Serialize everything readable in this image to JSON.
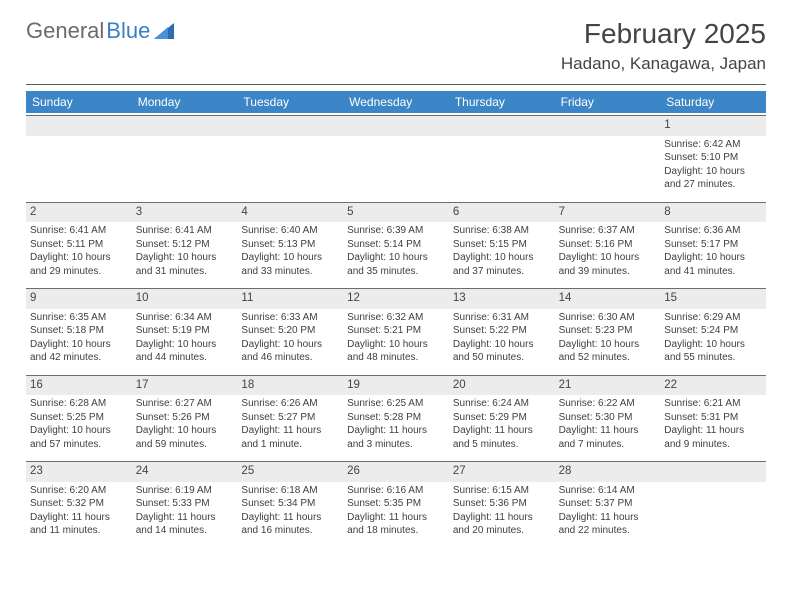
{
  "logo": {
    "text_gray": "General",
    "text_blue": "Blue"
  },
  "header": {
    "month_title": "February 2025",
    "location": "Hadano, Kanagawa, Japan"
  },
  "colors": {
    "header_bg": "#3c85c6",
    "header_text": "#ffffff",
    "daynum_bg": "#ececec",
    "rule": "#6d6d6d",
    "text": "#3f3f3f",
    "logo_gray": "#6b6b6b",
    "logo_blue": "#3b7fc4"
  },
  "day_labels": [
    "Sunday",
    "Monday",
    "Tuesday",
    "Wednesday",
    "Thursday",
    "Friday",
    "Saturday"
  ],
  "weeks": [
    [
      null,
      null,
      null,
      null,
      null,
      null,
      {
        "num": "1",
        "sunrise": "Sunrise: 6:42 AM",
        "sunset": "Sunset: 5:10 PM",
        "daylight1": "Daylight: 10 hours",
        "daylight2": "and 27 minutes."
      }
    ],
    [
      {
        "num": "2",
        "sunrise": "Sunrise: 6:41 AM",
        "sunset": "Sunset: 5:11 PM",
        "daylight1": "Daylight: 10 hours",
        "daylight2": "and 29 minutes."
      },
      {
        "num": "3",
        "sunrise": "Sunrise: 6:41 AM",
        "sunset": "Sunset: 5:12 PM",
        "daylight1": "Daylight: 10 hours",
        "daylight2": "and 31 minutes."
      },
      {
        "num": "4",
        "sunrise": "Sunrise: 6:40 AM",
        "sunset": "Sunset: 5:13 PM",
        "daylight1": "Daylight: 10 hours",
        "daylight2": "and 33 minutes."
      },
      {
        "num": "5",
        "sunrise": "Sunrise: 6:39 AM",
        "sunset": "Sunset: 5:14 PM",
        "daylight1": "Daylight: 10 hours",
        "daylight2": "and 35 minutes."
      },
      {
        "num": "6",
        "sunrise": "Sunrise: 6:38 AM",
        "sunset": "Sunset: 5:15 PM",
        "daylight1": "Daylight: 10 hours",
        "daylight2": "and 37 minutes."
      },
      {
        "num": "7",
        "sunrise": "Sunrise: 6:37 AM",
        "sunset": "Sunset: 5:16 PM",
        "daylight1": "Daylight: 10 hours",
        "daylight2": "and 39 minutes."
      },
      {
        "num": "8",
        "sunrise": "Sunrise: 6:36 AM",
        "sunset": "Sunset: 5:17 PM",
        "daylight1": "Daylight: 10 hours",
        "daylight2": "and 41 minutes."
      }
    ],
    [
      {
        "num": "9",
        "sunrise": "Sunrise: 6:35 AM",
        "sunset": "Sunset: 5:18 PM",
        "daylight1": "Daylight: 10 hours",
        "daylight2": "and 42 minutes."
      },
      {
        "num": "10",
        "sunrise": "Sunrise: 6:34 AM",
        "sunset": "Sunset: 5:19 PM",
        "daylight1": "Daylight: 10 hours",
        "daylight2": "and 44 minutes."
      },
      {
        "num": "11",
        "sunrise": "Sunrise: 6:33 AM",
        "sunset": "Sunset: 5:20 PM",
        "daylight1": "Daylight: 10 hours",
        "daylight2": "and 46 minutes."
      },
      {
        "num": "12",
        "sunrise": "Sunrise: 6:32 AM",
        "sunset": "Sunset: 5:21 PM",
        "daylight1": "Daylight: 10 hours",
        "daylight2": "and 48 minutes."
      },
      {
        "num": "13",
        "sunrise": "Sunrise: 6:31 AM",
        "sunset": "Sunset: 5:22 PM",
        "daylight1": "Daylight: 10 hours",
        "daylight2": "and 50 minutes."
      },
      {
        "num": "14",
        "sunrise": "Sunrise: 6:30 AM",
        "sunset": "Sunset: 5:23 PM",
        "daylight1": "Daylight: 10 hours",
        "daylight2": "and 52 minutes."
      },
      {
        "num": "15",
        "sunrise": "Sunrise: 6:29 AM",
        "sunset": "Sunset: 5:24 PM",
        "daylight1": "Daylight: 10 hours",
        "daylight2": "and 55 minutes."
      }
    ],
    [
      {
        "num": "16",
        "sunrise": "Sunrise: 6:28 AM",
        "sunset": "Sunset: 5:25 PM",
        "daylight1": "Daylight: 10 hours",
        "daylight2": "and 57 minutes."
      },
      {
        "num": "17",
        "sunrise": "Sunrise: 6:27 AM",
        "sunset": "Sunset: 5:26 PM",
        "daylight1": "Daylight: 10 hours",
        "daylight2": "and 59 minutes."
      },
      {
        "num": "18",
        "sunrise": "Sunrise: 6:26 AM",
        "sunset": "Sunset: 5:27 PM",
        "daylight1": "Daylight: 11 hours",
        "daylight2": "and 1 minute."
      },
      {
        "num": "19",
        "sunrise": "Sunrise: 6:25 AM",
        "sunset": "Sunset: 5:28 PM",
        "daylight1": "Daylight: 11 hours",
        "daylight2": "and 3 minutes."
      },
      {
        "num": "20",
        "sunrise": "Sunrise: 6:24 AM",
        "sunset": "Sunset: 5:29 PM",
        "daylight1": "Daylight: 11 hours",
        "daylight2": "and 5 minutes."
      },
      {
        "num": "21",
        "sunrise": "Sunrise: 6:22 AM",
        "sunset": "Sunset: 5:30 PM",
        "daylight1": "Daylight: 11 hours",
        "daylight2": "and 7 minutes."
      },
      {
        "num": "22",
        "sunrise": "Sunrise: 6:21 AM",
        "sunset": "Sunset: 5:31 PM",
        "daylight1": "Daylight: 11 hours",
        "daylight2": "and 9 minutes."
      }
    ],
    [
      {
        "num": "23",
        "sunrise": "Sunrise: 6:20 AM",
        "sunset": "Sunset: 5:32 PM",
        "daylight1": "Daylight: 11 hours",
        "daylight2": "and 11 minutes."
      },
      {
        "num": "24",
        "sunrise": "Sunrise: 6:19 AM",
        "sunset": "Sunset: 5:33 PM",
        "daylight1": "Daylight: 11 hours",
        "daylight2": "and 14 minutes."
      },
      {
        "num": "25",
        "sunrise": "Sunrise: 6:18 AM",
        "sunset": "Sunset: 5:34 PM",
        "daylight1": "Daylight: 11 hours",
        "daylight2": "and 16 minutes."
      },
      {
        "num": "26",
        "sunrise": "Sunrise: 6:16 AM",
        "sunset": "Sunset: 5:35 PM",
        "daylight1": "Daylight: 11 hours",
        "daylight2": "and 18 minutes."
      },
      {
        "num": "27",
        "sunrise": "Sunrise: 6:15 AM",
        "sunset": "Sunset: 5:36 PM",
        "daylight1": "Daylight: 11 hours",
        "daylight2": "and 20 minutes."
      },
      {
        "num": "28",
        "sunrise": "Sunrise: 6:14 AM",
        "sunset": "Sunset: 5:37 PM",
        "daylight1": "Daylight: 11 hours",
        "daylight2": "and 22 minutes."
      },
      null
    ]
  ]
}
